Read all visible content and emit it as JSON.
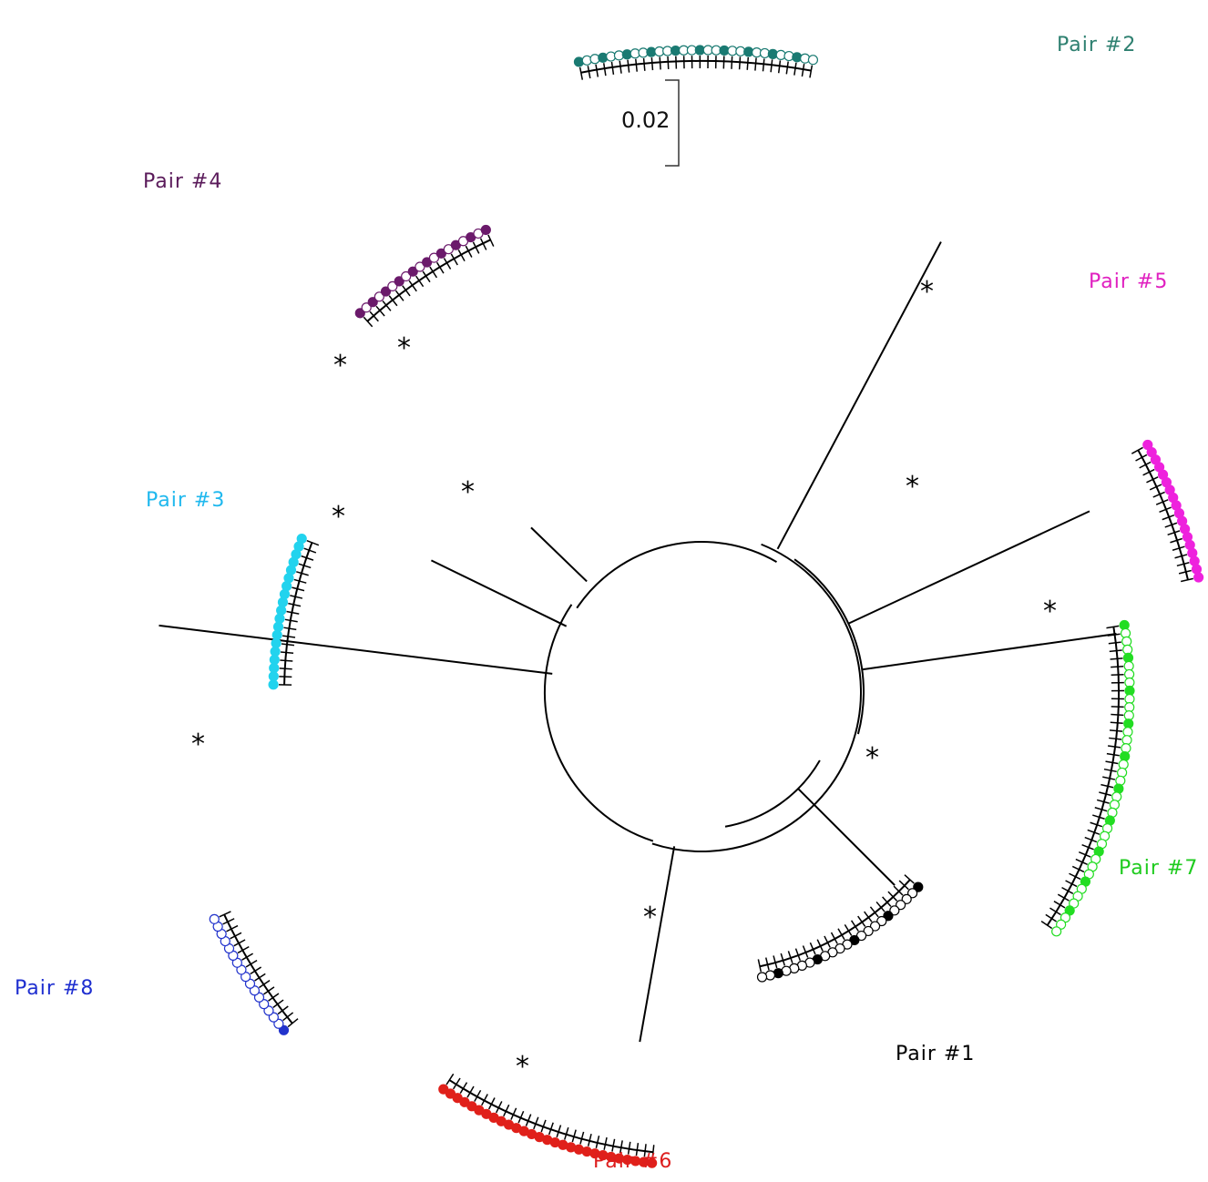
{
  "figure": {
    "scale_bar": {
      "label": "0.02"
    },
    "significance_marker": "*",
    "clades": [
      {
        "id": "pair1",
        "label": "Pair #1",
        "color": "#000000"
      },
      {
        "id": "pair2",
        "label": "Pair #2",
        "color": "#1a7a72"
      },
      {
        "id": "pair3",
        "label": "Pair #3",
        "color": "#22d3ee"
      },
      {
        "id": "pair4",
        "label": "Pair #4",
        "color": "#6b1a6b"
      },
      {
        "id": "pair5",
        "label": "Pair #5",
        "color": "#ee22dd"
      },
      {
        "id": "pair6",
        "label": "Pair #6",
        "color": "#e0201a"
      },
      {
        "id": "pair7",
        "label": "Pair #7",
        "color": "#22dd22"
      },
      {
        "id": "pair8",
        "label": "Pair #8",
        "color": "#2233cc"
      }
    ]
  }
}
